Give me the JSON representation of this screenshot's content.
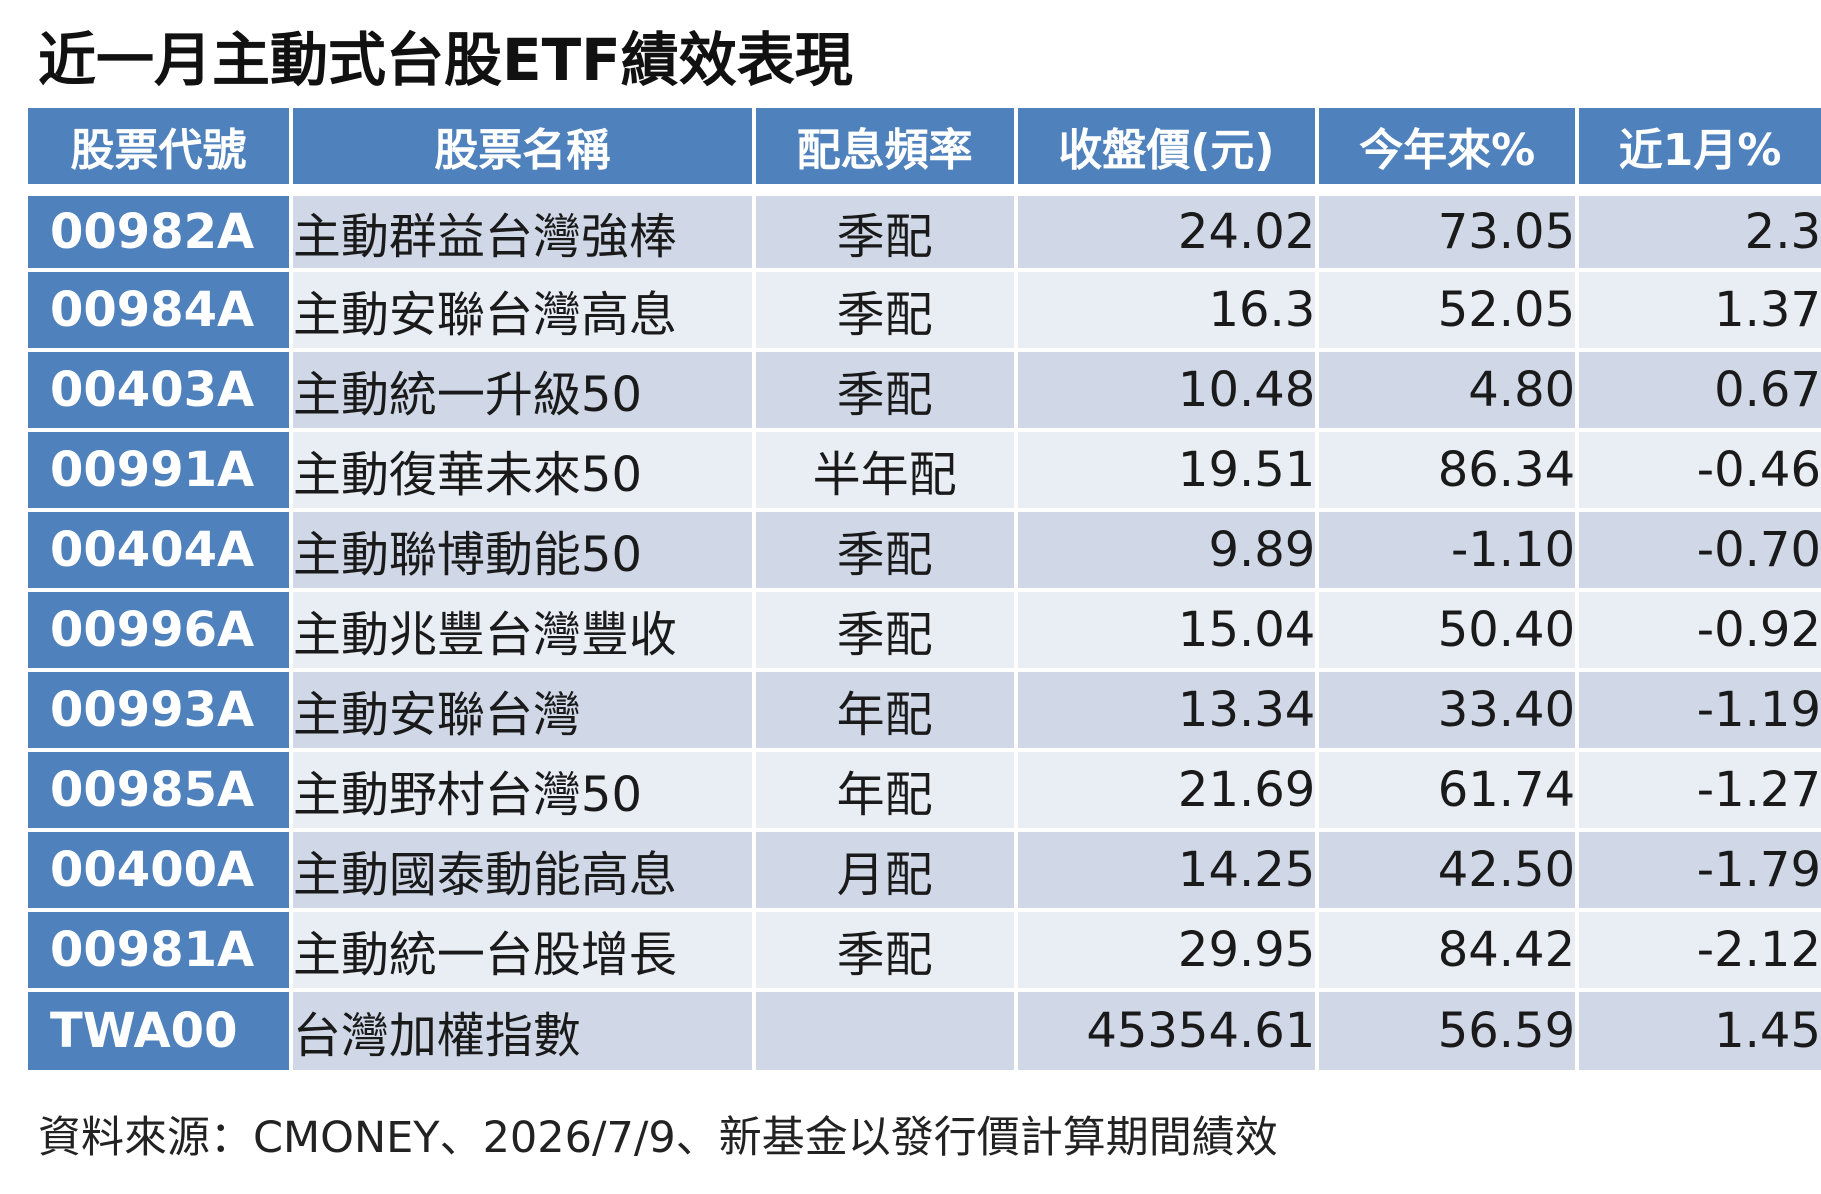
{
  "title": "近一月主動式台股ETF績效表現",
  "source": "資料來源：CMONEY、2026/7/9、新基金以發行價計算期間績效",
  "colors": {
    "header_bg": "#4f81bd",
    "code_col_bg": "#4f81bd",
    "row_band_dark": "#d0d8e8",
    "row_band_light": "#e9edf4"
  },
  "chart_data": {
    "type": "table",
    "title": "近一月主動式台股ETF績效表現",
    "columns": [
      "股票代號",
      "股票名稱",
      "配息頻率",
      "收盤價(元)",
      "今年來%",
      "近1月%"
    ],
    "rows": [
      {
        "code": "00982A",
        "name": "主動群益台灣強棒",
        "freq": "季配",
        "close": "24.02",
        "ytd": "73.05",
        "m1": "2.3"
      },
      {
        "code": "00984A",
        "name": "主動安聯台灣高息",
        "freq": "季配",
        "close": "16.3",
        "ytd": "52.05",
        "m1": "1.37"
      },
      {
        "code": "00403A",
        "name": "主動統一升級50",
        "freq": "季配",
        "close": "10.48",
        "ytd": "4.80",
        "m1": "0.67"
      },
      {
        "code": "00991A",
        "name": "主動復華未來50",
        "freq": "半年配",
        "close": "19.51",
        "ytd": "86.34",
        "m1": "-0.46"
      },
      {
        "code": "00404A",
        "name": "主動聯博動能50",
        "freq": "季配",
        "close": "9.89",
        "ytd": "-1.10",
        "m1": "-0.70"
      },
      {
        "code": "00996A",
        "name": "主動兆豐台灣豐收",
        "freq": "季配",
        "close": "15.04",
        "ytd": "50.40",
        "m1": "-0.92"
      },
      {
        "code": "00993A",
        "name": "主動安聯台灣",
        "freq": "年配",
        "close": "13.34",
        "ytd": "33.40",
        "m1": "-1.19"
      },
      {
        "code": "00985A",
        "name": "主動野村台灣50",
        "freq": "年配",
        "close": "21.69",
        "ytd": "61.74",
        "m1": "-1.27"
      },
      {
        "code": "00400A",
        "name": "主動國泰動能高息",
        "freq": "月配",
        "close": "14.25",
        "ytd": "42.50",
        "m1": "-1.79"
      },
      {
        "code": "00981A",
        "name": "主動統一台股增長",
        "freq": "季配",
        "close": "29.95",
        "ytd": "84.42",
        "m1": "-2.12"
      },
      {
        "code": "TWA00",
        "name": "台灣加權指數",
        "freq": "",
        "close": "45354.61",
        "ytd": "56.59",
        "m1": "1.45"
      }
    ]
  }
}
